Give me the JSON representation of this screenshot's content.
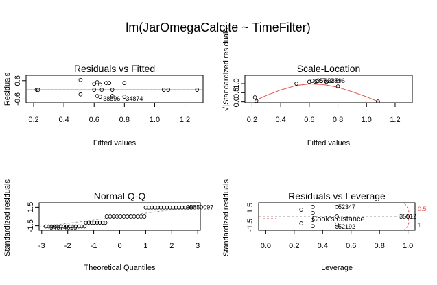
{
  "title": "lm(JarOmegaCalcite ~ TimeFilter)",
  "chart_data": [
    {
      "type": "scatter",
      "title": "Residuals vs Fitted",
      "xlabel": "Fitted values",
      "ylabel": "Residuals",
      "xlim": [
        0.15,
        1.32
      ],
      "ylim": [
        -0.85,
        0.95
      ],
      "xticks": [
        0.2,
        0.4,
        0.6,
        0.8,
        1.0,
        1.2
      ],
      "xtick_labels": [
        "0.2",
        "0.4",
        "0.6",
        "0.8",
        "1.0",
        "1.2"
      ],
      "yticks": [
        -0.6,
        0.6
      ],
      "ytick_labels": [
        "-0.6",
        "0.6"
      ],
      "x": [
        0.22,
        0.23,
        0.51,
        0.51,
        0.6,
        0.6,
        0.62,
        0.62,
        0.64,
        0.64,
        0.65,
        0.68,
        0.7,
        0.72,
        0.72,
        0.8,
        0.8,
        1.06,
        1.09,
        1.28
      ],
      "y": [
        0.0,
        0.0,
        0.65,
        -0.3,
        0.4,
        0.0,
        0.5,
        -0.4,
        0.35,
        -0.45,
        0.0,
        0.45,
        0.45,
        -0.4,
        0.0,
        0.45,
        -0.45,
        0.0,
        0.0,
        0.0
      ],
      "reference_line": 0,
      "point_labels": [
        {
          "x": 0.65,
          "y": -0.58,
          "text": "38596"
        },
        {
          "x": 0.8,
          "y": -0.58,
          "text": "34874"
        }
      ]
    },
    {
      "type": "scatter",
      "title": "Scale-Location",
      "xlabel": "Fitted values",
      "ylabel": "√|Standardized residuals|",
      "xlim": [
        0.15,
        1.32
      ],
      "ylim": [
        -0.05,
        1.45
      ],
      "xticks": [
        0.2,
        0.4,
        0.6,
        0.8,
        1.0,
        1.2
      ],
      "xtick_labels": [
        "0.2",
        "0.4",
        "0.6",
        "0.8",
        "1.0",
        "1.2"
      ],
      "yticks": [
        0.0,
        0.5,
        1.0
      ],
      "ytick_labels": [
        "0.0",
        "0.5",
        "1.0"
      ],
      "x": [
        0.22,
        0.23,
        0.51,
        0.6,
        0.62,
        0.64,
        0.65,
        0.68,
        0.7,
        0.72,
        0.8,
        0.8,
        1.08
      ],
      "y": [
        0.25,
        0.05,
        1.0,
        1.1,
        1.15,
        1.1,
        1.12,
        1.15,
        1.18,
        1.1,
        1.15,
        0.85,
        0.02
      ],
      "smooth_x": [
        0.22,
        0.3,
        0.4,
        0.51,
        0.6,
        0.7,
        0.8,
        0.9,
        1.0,
        1.08
      ],
      "smooth_y": [
        0.08,
        0.35,
        0.65,
        0.9,
        0.98,
        0.95,
        0.8,
        0.55,
        0.28,
        0.02
      ],
      "point_labels": [
        {
          "x": 0.64,
          "y": 1.15,
          "text": "35512"
        },
        {
          "x": 0.72,
          "y": 1.15,
          "text": "38596"
        }
      ]
    },
    {
      "type": "scatter",
      "title": "Normal Q-Q",
      "xlabel": "Theoretical Quantiles",
      "ylabel": "Standardized residuals",
      "xlim": [
        -3.1,
        3.1
      ],
      "ylim": [
        -2.2,
        2.2
      ],
      "xticks": [
        -3,
        -2,
        -1,
        0,
        1,
        2,
        3
      ],
      "xtick_labels": [
        "-3",
        "-2",
        "-1",
        "0",
        "1",
        "2",
        "3"
      ],
      "yticks": [
        -1.5,
        1.5
      ],
      "ytick_labels": [
        "-1.5",
        "1.5"
      ],
      "reference_line": {
        "intercept": 0,
        "slope": 0.55
      },
      "groups": [
        {
          "x_from": -2.85,
          "x_to": -1.35,
          "n": 14,
          "y": -1.6
        },
        {
          "x_from": -1.3,
          "x_to": -0.55,
          "n": 8,
          "y": -1.0
        },
        {
          "x_from": -0.5,
          "x_to": 0.95,
          "n": 12,
          "y": 0.0
        },
        {
          "x_from": 1.0,
          "x_to": 2.75,
          "n": 16,
          "y": 1.45
        }
      ],
      "point_labels": [
        {
          "x": -2.75,
          "y": -1.75,
          "text": "34674625"
        },
        {
          "x": 2.5,
          "y": 1.5,
          "text": "35850097"
        }
      ]
    },
    {
      "type": "scatter",
      "title": "Residuals vs Leverage",
      "xlabel": "Leverage",
      "ylabel": "Standardized residuals",
      "xlim": [
        -0.05,
        1.05
      ],
      "ylim": [
        -2.4,
        2.4
      ],
      "xticks": [
        0.0,
        0.2,
        0.4,
        0.6,
        0.8,
        1.0
      ],
      "xtick_labels": [
        "0.0",
        "0.2",
        "0.4",
        "0.6",
        "0.8",
        "1.0"
      ],
      "yticks": [
        -1.5,
        1.5
      ],
      "ytick_labels": [
        "-1.5",
        "1.5"
      ],
      "x": [
        0.25,
        0.25,
        0.33,
        0.33,
        0.33,
        0.33,
        0.5,
        0.5,
        0.5,
        0.5,
        1.0
      ],
      "y": [
        1.2,
        -1.2,
        1.7,
        0.6,
        -0.6,
        -1.7,
        1.7,
        0.0,
        -1.4,
        -1.8,
        0.0
      ],
      "reference_line": 0,
      "legend": "Cook's distance",
      "cook_levels": [
        "0.5",
        "1"
      ],
      "point_labels": [
        {
          "x": 0.5,
          "y": 1.7,
          "text": "52347"
        },
        {
          "x": 0.93,
          "y": 0.0,
          "text": "35512"
        },
        {
          "x": 0.5,
          "y": -1.8,
          "text": "52192"
        }
      ]
    }
  ]
}
